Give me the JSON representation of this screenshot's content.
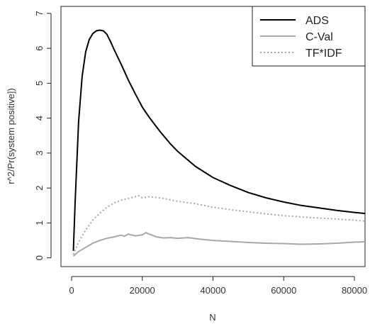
{
  "chart_data": {
    "type": "line",
    "title": "",
    "xlabel": "N",
    "ylabel": "r^2/Pr(system positive])",
    "xlim": [
      -3000,
      83000
    ],
    "ylim": [
      -0.25,
      7.2
    ],
    "x_ticks": [
      0,
      20000,
      40000,
      60000,
      80000
    ],
    "x_tick_labels": [
      "0",
      "20000",
      "40000",
      "60000",
      "80000"
    ],
    "y_ticks": [
      0,
      1,
      2,
      3,
      4,
      5,
      6,
      7
    ],
    "y_tick_labels": [
      "0",
      "1",
      "2",
      "3",
      "4",
      "5",
      "6",
      "7"
    ],
    "grid": false,
    "legend_position": "top-right",
    "series": [
      {
        "name": "ADS",
        "color": "#000000",
        "dash": "solid",
        "x": [
          500,
          1000,
          2000,
          3000,
          4000,
          5000,
          6000,
          7000,
          8000,
          9000,
          10000,
          11000,
          12000,
          14000,
          16000,
          18000,
          20000,
          22000,
          25000,
          28000,
          30000,
          35000,
          40000,
          45000,
          50000,
          55000,
          60000,
          65000,
          70000,
          75000,
          80000,
          83000
        ],
        "values": [
          0.2,
          1.6,
          3.9,
          5.2,
          5.9,
          6.25,
          6.42,
          6.5,
          6.52,
          6.5,
          6.4,
          6.2,
          5.97,
          5.55,
          5.1,
          4.7,
          4.32,
          4.02,
          3.62,
          3.26,
          3.05,
          2.62,
          2.3,
          2.07,
          1.87,
          1.72,
          1.6,
          1.5,
          1.43,
          1.36,
          1.3,
          1.27
        ]
      },
      {
        "name": "C-Val",
        "color": "#a8a8a8",
        "dash": "solid",
        "x": [
          500,
          2000,
          4000,
          6000,
          8000,
          10000,
          12000,
          14000,
          15000,
          16000,
          18000,
          20000,
          21000,
          22000,
          24000,
          26000,
          28000,
          30000,
          33000,
          36000,
          40000,
          45000,
          50000,
          55000,
          60000,
          65000,
          70000,
          75000,
          80000,
          83000
        ],
        "values": [
          0.05,
          0.18,
          0.3,
          0.42,
          0.5,
          0.56,
          0.6,
          0.65,
          0.62,
          0.68,
          0.63,
          0.66,
          0.72,
          0.68,
          0.6,
          0.57,
          0.58,
          0.56,
          0.58,
          0.54,
          0.5,
          0.47,
          0.44,
          0.42,
          0.41,
          0.39,
          0.4,
          0.42,
          0.45,
          0.46
        ]
      },
      {
        "name": "TF*IDF",
        "color": "#a8a8a8",
        "dash": "dotted",
        "x": [
          500,
          2000,
          4000,
          6000,
          8000,
          10000,
          12000,
          14000,
          16000,
          18000,
          19000,
          20000,
          22000,
          24000,
          26000,
          30000,
          35000,
          40000,
          45000,
          50000,
          55000,
          60000,
          65000,
          70000,
          75000,
          80000,
          83000
        ],
        "values": [
          0.1,
          0.45,
          0.8,
          1.08,
          1.28,
          1.45,
          1.57,
          1.65,
          1.7,
          1.75,
          1.78,
          1.72,
          1.75,
          1.73,
          1.7,
          1.62,
          1.55,
          1.45,
          1.38,
          1.32,
          1.26,
          1.21,
          1.17,
          1.14,
          1.11,
          1.08,
          1.05
        ]
      }
    ]
  }
}
